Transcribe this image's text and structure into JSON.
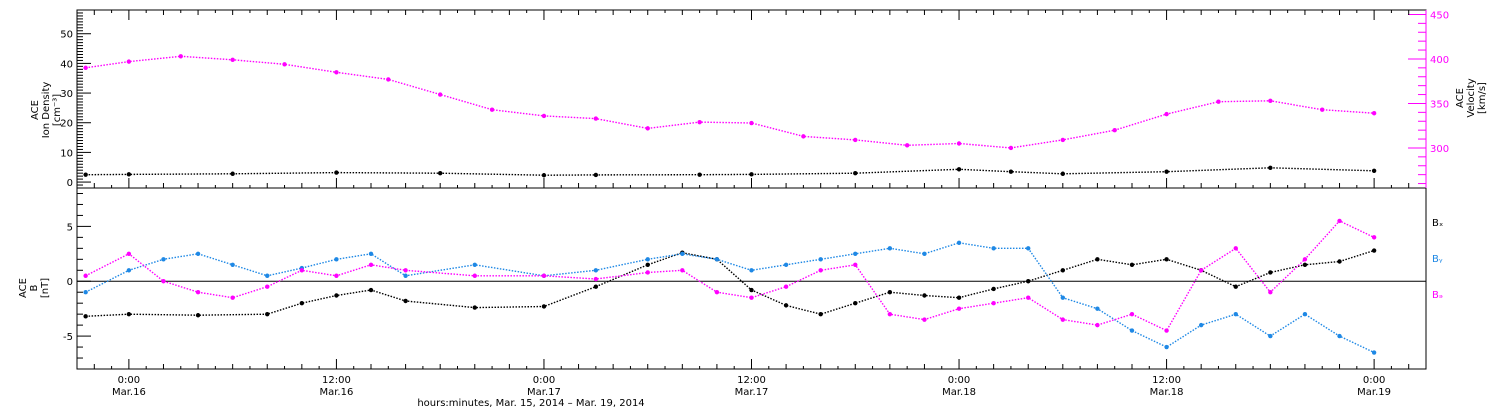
{
  "chart_data": [
    {
      "type": "scatter",
      "panel": "top",
      "ylabel_left": [
        "ACE",
        "Ion Density",
        "[cm⁻³]"
      ],
      "ylabel_right": [
        "ACE",
        "Velocity",
        "[km/s]"
      ],
      "ylim_left": [
        -2,
        58
      ],
      "yticks_left": [
        0,
        10,
        20,
        30,
        40,
        50
      ],
      "ylim_right": [
        255,
        455
      ],
      "yticks_right": [
        300,
        350,
        400,
        450
      ],
      "series": [
        {
          "axis": "left",
          "color": "#000000",
          "points": [
            [
              -2.5,
              2.5
            ],
            [
              0,
              2.6
            ],
            [
              6,
              2.8
            ],
            [
              12,
              3.2
            ],
            [
              18,
              3.0
            ],
            [
              24,
              2.3
            ],
            [
              27,
              2.4
            ],
            [
              33,
              2.5
            ],
            [
              36,
              2.6
            ],
            [
              42,
              3.0
            ],
            [
              48,
              4.3
            ],
            [
              51,
              3.5
            ],
            [
              54,
              2.8
            ],
            [
              60,
              3.5
            ],
            [
              66,
              4.8
            ],
            [
              72,
              3.8
            ]
          ]
        },
        {
          "axis": "right",
          "color": "#ff00ff",
          "points": [
            [
              -2.5,
              390
            ],
            [
              0,
              397
            ],
            [
              3,
              403
            ],
            [
              6,
              399
            ],
            [
              9,
              394
            ],
            [
              12,
              385
            ],
            [
              15,
              377
            ],
            [
              18,
              360
            ],
            [
              21,
              343
            ],
            [
              24,
              336
            ],
            [
              27,
              333
            ],
            [
              30,
              322
            ],
            [
              33,
              329
            ],
            [
              36,
              328
            ],
            [
              39,
              313
            ],
            [
              42,
              309
            ],
            [
              45,
              303
            ],
            [
              48,
              305
            ],
            [
              51,
              300
            ],
            [
              54,
              309
            ],
            [
              57,
              320
            ],
            [
              60,
              338
            ],
            [
              63,
              352
            ],
            [
              66,
              353
            ],
            [
              69,
              343
            ],
            [
              72,
              339
            ]
          ]
        }
      ]
    },
    {
      "type": "scatter",
      "panel": "bottom",
      "ylabel": [
        "ACE",
        "B",
        "[nT]"
      ],
      "ylim": [
        -8,
        8.5
      ],
      "yticks": [
        -5,
        0,
        5
      ],
      "legend": [
        "Bₓ",
        "Bᵧ",
        "Bₔ"
      ],
      "series": [
        {
          "name": "Bₓ",
          "color": "#000000",
          "points": [
            [
              -2.5,
              -3.2
            ],
            [
              0,
              -3.0
            ],
            [
              4,
              -3.1
            ],
            [
              8,
              -3.0
            ],
            [
              10,
              -2.0
            ],
            [
              12,
              -1.3
            ],
            [
              14,
              -0.8
            ],
            [
              16,
              -1.8
            ],
            [
              20,
              -2.4
            ],
            [
              24,
              -2.3
            ],
            [
              27,
              -0.5
            ],
            [
              30,
              1.5
            ],
            [
              32,
              2.6
            ],
            [
              34,
              2.0
            ],
            [
              36,
              -0.8
            ],
            [
              38,
              -2.2
            ],
            [
              40,
              -3.0
            ],
            [
              42,
              -2.0
            ],
            [
              44,
              -1.0
            ],
            [
              46,
              -1.3
            ],
            [
              48,
              -1.5
            ],
            [
              50,
              -0.7
            ],
            [
              52,
              0
            ],
            [
              54,
              1.0
            ],
            [
              56,
              2.0
            ],
            [
              58,
              1.5
            ],
            [
              60,
              2.0
            ],
            [
              62,
              1.0
            ],
            [
              64,
              -0.5
            ],
            [
              66,
              0.8
            ],
            [
              68,
              1.5
            ],
            [
              70,
              1.8
            ],
            [
              72,
              2.8
            ]
          ]
        },
        {
          "name": "Bᵧ",
          "color": "#1e88e5",
          "points": [
            [
              -2.5,
              -1.0
            ],
            [
              0,
              1.0
            ],
            [
              2,
              2.0
            ],
            [
              4,
              2.5
            ],
            [
              6,
              1.5
            ],
            [
              8,
              0.5
            ],
            [
              10,
              1.2
            ],
            [
              12,
              2.0
            ],
            [
              14,
              2.5
            ],
            [
              16,
              0.5
            ],
            [
              20,
              1.5
            ],
            [
              24,
              0.5
            ],
            [
              27,
              1.0
            ],
            [
              30,
              2.0
            ],
            [
              32,
              2.5
            ],
            [
              34,
              2.0
            ],
            [
              36,
              1.0
            ],
            [
              38,
              1.5
            ],
            [
              40,
              2.0
            ],
            [
              42,
              2.5
            ],
            [
              44,
              3.0
            ],
            [
              46,
              2.5
            ],
            [
              48,
              3.5
            ],
            [
              50,
              3.0
            ],
            [
              52,
              3.0
            ],
            [
              54,
              -1.5
            ],
            [
              56,
              -2.5
            ],
            [
              58,
              -4.5
            ],
            [
              60,
              -6.0
            ],
            [
              62,
              -4.0
            ],
            [
              64,
              -3.0
            ],
            [
              66,
              -5.0
            ],
            [
              68,
              -3.0
            ],
            [
              70,
              -5.0
            ],
            [
              72,
              -6.5
            ]
          ]
        },
        {
          "name": "Bₔ",
          "color": "#ff00ff",
          "points": [
            [
              -2.5,
              0.5
            ],
            [
              0,
              2.5
            ],
            [
              2,
              0
            ],
            [
              4,
              -1.0
            ],
            [
              6,
              -1.5
            ],
            [
              8,
              -0.5
            ],
            [
              10,
              1.0
            ],
            [
              12,
              0.5
            ],
            [
              14,
              1.5
            ],
            [
              16,
              1.0
            ],
            [
              20,
              0.5
            ],
            [
              24,
              0.5
            ],
            [
              27,
              0.2
            ],
            [
              30,
              0.8
            ],
            [
              32,
              1.0
            ],
            [
              34,
              -1.0
            ],
            [
              36,
              -1.5
            ],
            [
              38,
              -0.5
            ],
            [
              40,
              1.0
            ],
            [
              42,
              1.5
            ],
            [
              44,
              -3.0
            ],
            [
              46,
              -3.5
            ],
            [
              48,
              -2.5
            ],
            [
              50,
              -2.0
            ],
            [
              52,
              -1.5
            ],
            [
              54,
              -3.5
            ],
            [
              56,
              -4.0
            ],
            [
              58,
              -3.0
            ],
            [
              60,
              -4.5
            ],
            [
              62,
              1.0
            ],
            [
              64,
              3.0
            ],
            [
              66,
              -1.0
            ],
            [
              68,
              2.0
            ],
            [
              70,
              5.5
            ],
            [
              72,
              4.0
            ]
          ]
        }
      ]
    }
  ],
  "x_axis": {
    "xlim": [
      -3,
      75
    ],
    "ticks": [
      {
        "hours": 0,
        "time": "0:00",
        "date": "Mar.16"
      },
      {
        "hours": 12,
        "time": "12:00",
        "date": "Mar.16"
      },
      {
        "hours": 24,
        "time": "0:00",
        "date": "Mar.17"
      },
      {
        "hours": 36,
        "time": "12:00",
        "date": "Mar.17"
      },
      {
        "hours": 48,
        "time": "0:00",
        "date": "Mar.18"
      },
      {
        "hours": 60,
        "time": "12:00",
        "date": "Mar.18"
      },
      {
        "hours": 72,
        "time": "0:00",
        "date": "Mar.19"
      }
    ],
    "label": "hours:minutes, Mar. 15, 2014 – Mar. 19, 2014"
  }
}
